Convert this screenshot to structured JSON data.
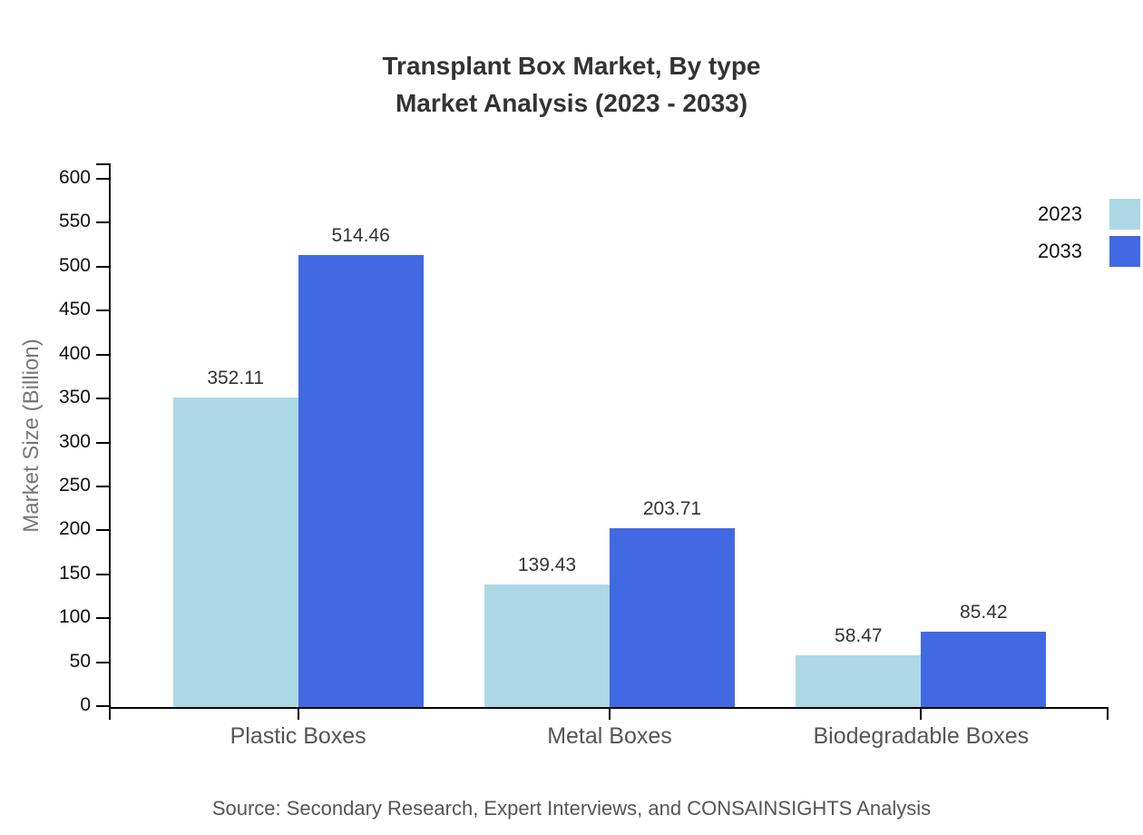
{
  "title": {
    "line1": "Transplant Box Market, By type",
    "line2": "Market Analysis (2023 - 2033)"
  },
  "source": "Source: Secondary Research, Expert Interviews, and CONSAINSIGHTS Analysis",
  "colors": {
    "series_2023": "#ADD8E6",
    "series_2033": "#4169E1",
    "title_text": "#333333",
    "axis_line": "#000000",
    "tick_label": "#111111",
    "category_label": "#555555",
    "value_label": "#333333",
    "source_text": "#555555",
    "axis_title": "#777777",
    "background": "#ffffff"
  },
  "chart_data": {
    "type": "bar",
    "title": "Transplant Box Market, By type — Market Analysis (2023 - 2033)",
    "categories": [
      "Plastic Boxes",
      "Metal Boxes",
      "Biodegradable Boxes"
    ],
    "series": [
      {
        "name": "2023",
        "color_key": "series_2023",
        "values": [
          352.11,
          139.43,
          58.47
        ]
      },
      {
        "name": "2033",
        "color_key": "series_2033",
        "values": [
          514.46,
          203.71,
          85.42
        ]
      }
    ],
    "value_labels": [
      [
        "352.11",
        "139.43",
        "58.47"
      ],
      [
        "514.46",
        "203.71",
        "85.42"
      ]
    ],
    "xlabel": "",
    "ylabel": "Market Size (Billion)",
    "ylim": [
      0,
      600
    ],
    "ytick_step": 50,
    "grid": false,
    "legend_position": "right-top",
    "legend_entries": [
      "2023",
      "2033"
    ]
  }
}
